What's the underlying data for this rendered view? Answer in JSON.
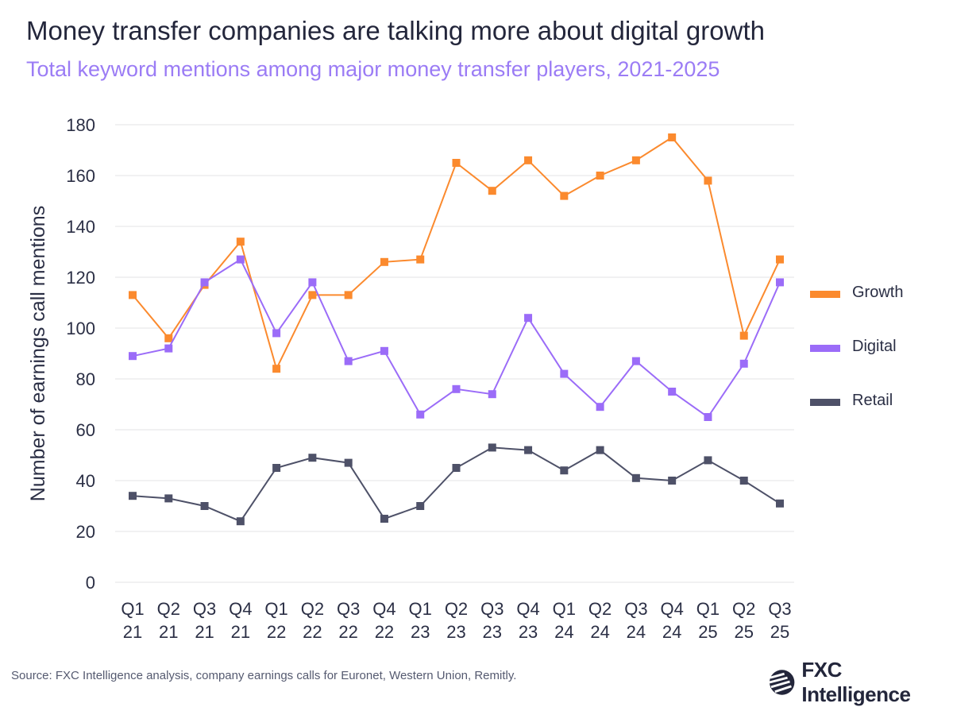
{
  "title": "Money transfer companies are talking more about digital growth",
  "subtitle": "Total keyword mentions among major money transfer players, 2021-2025",
  "source": "Source: FXC Intelligence analysis, company earnings calls for Euronet, Western Union, Remitly.",
  "logo": {
    "text": "FXC Intelligence",
    "icon": "fxc-globe-icon"
  },
  "chart_data": {
    "type": "line",
    "title": "",
    "ylabel": "Number of earnings call mentions",
    "xlabel": "",
    "ylim": [
      0,
      180
    ],
    "yticks": [
      0,
      20,
      40,
      60,
      80,
      100,
      120,
      140,
      160,
      180
    ],
    "grid": true,
    "legend_placement": "right",
    "categories": [
      [
        "Q1",
        "21"
      ],
      [
        "Q2",
        "21"
      ],
      [
        "Q3",
        "21"
      ],
      [
        "Q4",
        "21"
      ],
      [
        "Q1",
        "22"
      ],
      [
        "Q2",
        "22"
      ],
      [
        "Q3",
        "22"
      ],
      [
        "Q4",
        "22"
      ],
      [
        "Q1",
        "23"
      ],
      [
        "Q2",
        "23"
      ],
      [
        "Q3",
        "23"
      ],
      [
        "Q4",
        "23"
      ],
      [
        "Q1",
        "24"
      ],
      [
        "Q2",
        "24"
      ],
      [
        "Q3",
        "24"
      ],
      [
        "Q4",
        "24"
      ],
      [
        "Q1",
        "25"
      ],
      [
        "Q2",
        "25"
      ],
      [
        "Q3",
        "25"
      ]
    ],
    "series": [
      {
        "name": "Growth",
        "color": "#fb8a2e",
        "values": [
          113,
          96,
          117,
          134,
          84,
          113,
          113,
          126,
          127,
          165,
          154,
          166,
          152,
          160,
          166,
          175,
          158,
          97,
          127
        ]
      },
      {
        "name": "Digital",
        "color": "#9b6cf8",
        "values": [
          89,
          92,
          118,
          127,
          98,
          118,
          87,
          91,
          66,
          76,
          74,
          104,
          82,
          69,
          87,
          75,
          65,
          86,
          118
        ]
      },
      {
        "name": "Retail",
        "color": "#4e5168",
        "values": [
          34,
          33,
          30,
          24,
          45,
          49,
          47,
          25,
          30,
          45,
          53,
          52,
          44,
          52,
          41,
          40,
          48,
          40,
          31
        ]
      }
    ]
  }
}
